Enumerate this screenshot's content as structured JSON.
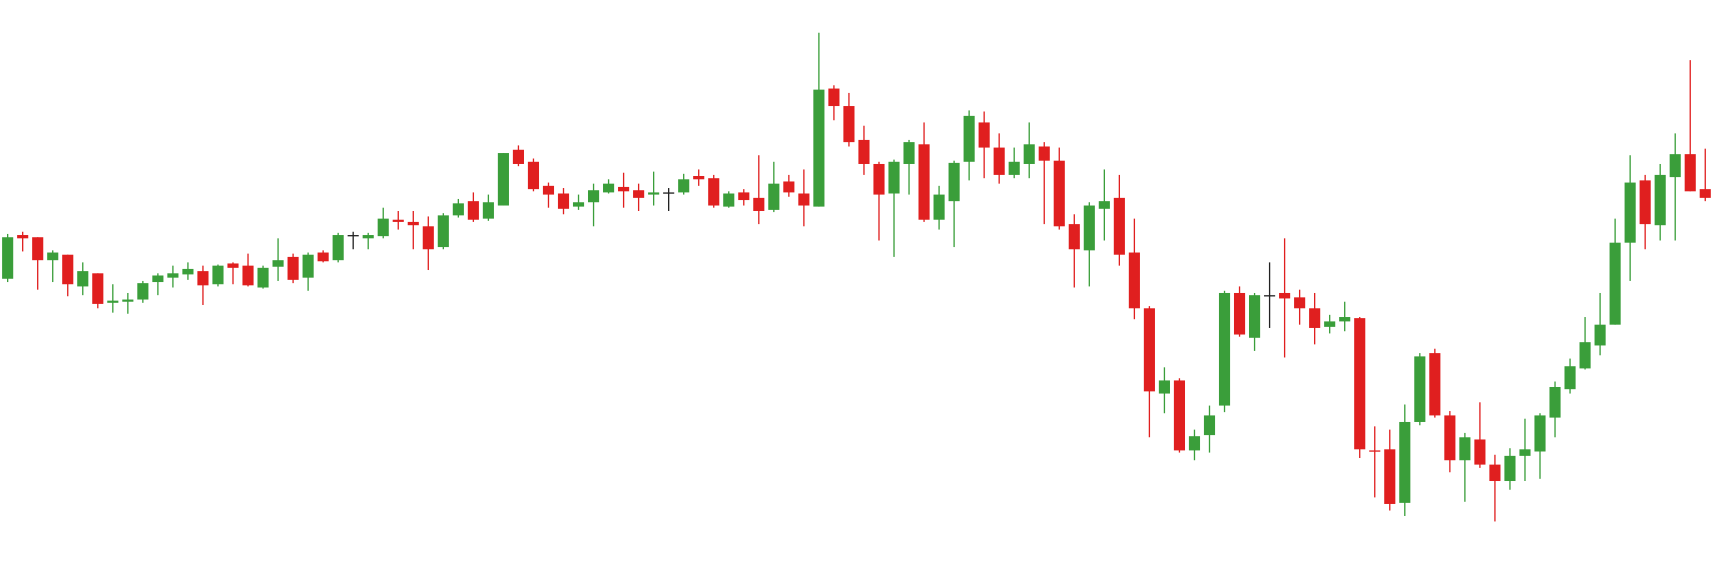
{
  "chart_data": {
    "type": "candlestick",
    "up_color": "#3a9e3a",
    "down_color": "#e01f1f",
    "doji_color": "#222222",
    "ylim": [
      0,
      515
    ],
    "open": [
      260,
      300,
      298,
      277,
      282,
      253,
      265,
      238,
      239,
      241,
      257,
      261,
      264,
      267,
      255,
      274,
      272,
      252,
      271,
      280,
      261,
      284,
      277,
      300,
      297,
      299,
      314,
      312,
      308,
      289,
      318,
      331,
      315,
      327,
      378,
      367,
      345,
      338,
      326,
      330,
      339,
      344,
      341,
      337,
      339,
      339,
      354,
      352,
      326,
      339,
      334,
      323,
      349,
      338,
      326,
      434,
      418,
      387,
      365,
      338,
      365,
      383,
      314,
      331,
      367,
      403,
      380,
      355,
      365,
      381,
      368,
      310,
      286,
      324,
      334,
      284,
      233,
      155,
      167,
      103,
      117,
      144,
      247,
      206,
      245,
      247,
      243,
      233,
      216,
      221,
      224,
      103,
      104,
      55,
      129,
      192,
      135,
      94,
      113,
      90,
      75,
      98,
      102,
      133,
      159,
      178,
      199,
      218,
      293,
      350,
      309,
      353,
      374,
      342
    ],
    "high": [
      301,
      303,
      298,
      286,
      282,
      275,
      265,
      255,
      247,
      258,
      265,
      272,
      275,
      272,
      273,
      275,
      283,
      272,
      297,
      283,
      284,
      286,
      302,
      303,
      302,
      325,
      322,
      322,
      317,
      320,
      333,
      339,
      337,
      375,
      382,
      370,
      348,
      343,
      337,
      347,
      351,
      357,
      347,
      358,
      343,
      356,
      360,
      355,
      340,
      342,
      373,
      367,
      355,
      360,
      485,
      437,
      430,
      400,
      367,
      369,
      387,
      403,
      345,
      368,
      414,
      413,
      393,
      380,
      403,
      385,
      380,
      319,
      330,
      360,
      355,
      315,
      235,
      179,
      169,
      122,
      144,
      249,
      253,
      247,
      275,
      297,
      250,
      247,
      227,
      239,
      225,
      125,
      122,
      145,
      192,
      196,
      139,
      119,
      147,
      99,
      105,
      132,
      137,
      166,
      187,
      225,
      247,
      315,
      373,
      355,
      365,
      393,
      460,
      379
    ],
    "low": [
      257,
      285,
      250,
      257,
      244,
      245,
      233,
      229,
      228,
      238,
      245,
      252,
      259,
      236,
      253,
      255,
      253,
      251,
      258,
      256,
      249,
      275,
      275,
      287,
      287,
      297,
      305,
      287,
      268,
      287,
      316,
      312,
      313,
      327,
      363,
      340,
      325,
      319,
      323,
      308,
      338,
      325,
      322,
      327,
      322,
      337,
      345,
      325,
      325,
      327,
      310,
      321,
      335,
      308,
      326,
      405,
      381,
      355,
      295,
      280,
      337,
      312,
      305,
      289,
      350,
      352,
      347,
      352,
      352,
      310,
      305,
      252,
      253,
      295,
      272,
      223,
      115,
      137,
      101,
      94,
      101,
      138,
      207,
      194,
      215,
      188,
      218,
      200,
      210,
      212,
      96,
      60,
      48,
      43,
      126,
      133,
      83,
      56,
      87,
      38,
      67,
      75,
      77,
      115,
      155,
      177,
      190,
      218,
      258,
      287,
      295,
      295,
      340,
      331
    ],
    "close": [
      298,
      297,
      277,
      284,
      255,
      267,
      237,
      240,
      241,
      256,
      263,
      265,
      269,
      254,
      272,
      270,
      254,
      270,
      277,
      259,
      282,
      276,
      300,
      300,
      300,
      315,
      312,
      309,
      287,
      318,
      329,
      314,
      330,
      375,
      365,
      342,
      337,
      324,
      330,
      341,
      347,
      340,
      334,
      339,
      339,
      351,
      351,
      327,
      338,
      332,
      322,
      347,
      339,
      327,
      433,
      418,
      385,
      365,
      337,
      367,
      385,
      314,
      337,
      366,
      409,
      380,
      355,
      367,
      383,
      368,
      308,
      287,
      327,
      331,
      282,
      233,
      157,
      167,
      103,
      116,
      135,
      247,
      209,
      245,
      245,
      242,
      233,
      215,
      221,
      225,
      104,
      102,
      54,
      129,
      189,
      135,
      94,
      115,
      90,
      75,
      98,
      104,
      135,
      161,
      180,
      202,
      218,
      293,
      348,
      310,
      355,
      374,
      340,
      334
    ]
  }
}
